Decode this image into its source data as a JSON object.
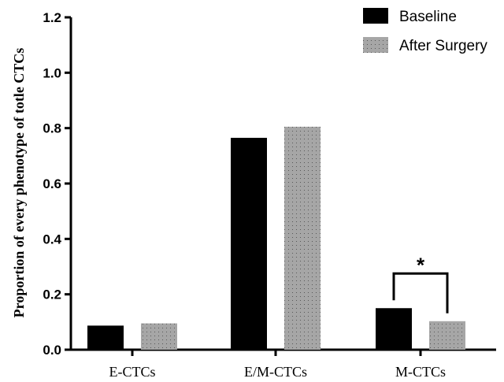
{
  "chart_data": {
    "type": "bar",
    "title": "",
    "xlabel": "",
    "ylabel": "Proportion of every phenotype of totle CTCs",
    "ylim": [
      0,
      1.2
    ],
    "yticks": [
      "0.0",
      "0.2",
      "0.4",
      "0.6",
      "0.8",
      "1.0",
      "1.2"
    ],
    "categories": [
      "E-CTCs",
      "E/M-CTCs",
      "M-CTCs"
    ],
    "series": [
      {
        "name": "Baseline",
        "values": [
          0.087,
          0.765,
          0.15
        ],
        "color": "#000000",
        "pattern": "solid"
      },
      {
        "name": "After Surgery",
        "values": [
          0.095,
          0.805,
          0.103
        ],
        "color": "#a6a6a6",
        "pattern": "dotted"
      }
    ],
    "grid": false,
    "legend_position": "top-right",
    "annotations": [
      {
        "text": "*",
        "category": "M-CTCs",
        "type": "significance-bracket"
      }
    ]
  }
}
